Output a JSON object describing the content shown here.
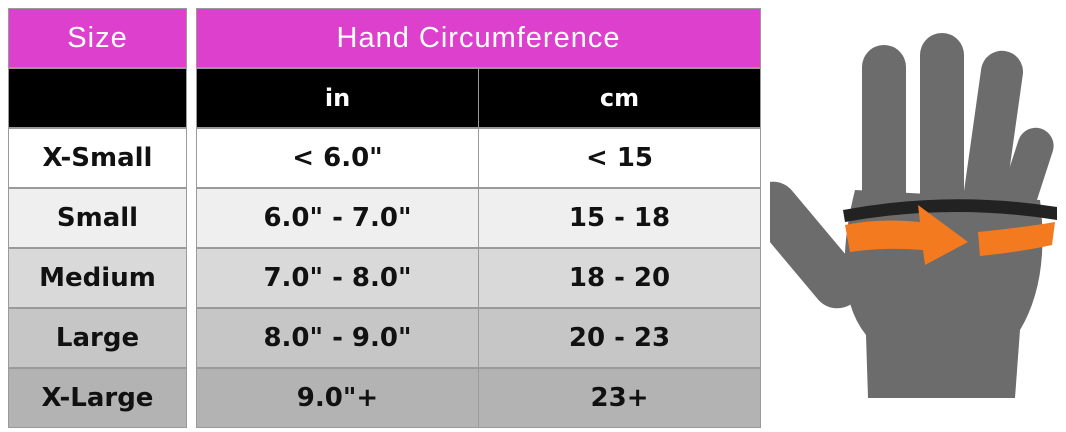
{
  "table": {
    "size_header": "Size",
    "group_header": "Hand Circumference",
    "unit_headers": [
      "in",
      "cm"
    ],
    "rows": [
      [
        "X-Small",
        "< 6.0\"",
        "< 15"
      ],
      [
        "Small",
        "6.0\" - 7.0\"",
        "15 - 18"
      ],
      [
        "Medium",
        "7.0\" - 8.0\"",
        "18 - 20"
      ],
      [
        "Large",
        "8.0\" - 9.0\"",
        "20 - 23"
      ],
      [
        "X-Large",
        "9.0\"+",
        "23+"
      ]
    ]
  }
}
